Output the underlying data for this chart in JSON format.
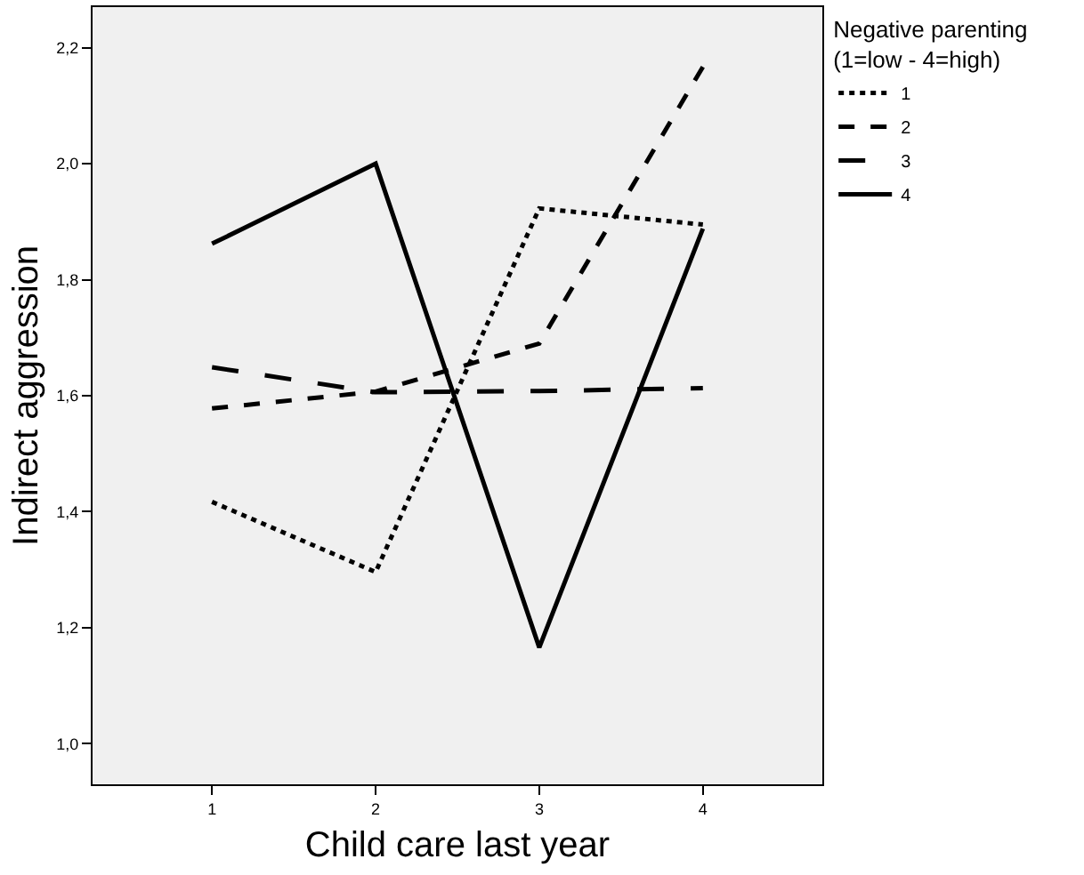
{
  "chart_data": {
    "type": "line",
    "xlabel": "Child care last year",
    "ylabel": "Indirect aggression",
    "legend_title": "Negative parenting\n(1=low - 4=high)",
    "x": [
      1,
      2,
      3,
      4
    ],
    "series": [
      {
        "name": "1",
        "color": "#000000",
        "line_style": "dotted",
        "values": [
          1.417,
          1.296,
          1.923,
          1.895
        ]
      },
      {
        "name": "2",
        "color": "#000000",
        "line_style": "dashed",
        "values": [
          1.578,
          1.607,
          1.69,
          2.167
        ]
      },
      {
        "name": "3",
        "color": "#000000",
        "line_style": "longdash",
        "values": [
          1.649,
          1.606,
          1.608,
          1.613
        ]
      },
      {
        "name": "4",
        "color": "#000000",
        "line_style": "solid",
        "values": [
          1.862,
          2.0,
          1.166,
          1.888
        ]
      }
    ],
    "xlim": [
      0.27,
      4.73
    ],
    "xticks": [
      1,
      2,
      3,
      4
    ],
    "ylim": [
      0.93,
      2.27
    ],
    "yticks": [
      {
        "value": 1.0,
        "label": "1,0"
      },
      {
        "value": 1.2,
        "label": "1,2"
      },
      {
        "value": 1.4,
        "label": "1,4"
      },
      {
        "value": 1.6,
        "label": "1,6"
      },
      {
        "value": 1.8,
        "label": "1,8"
      },
      {
        "value": 2.0,
        "label": "2,0"
      },
      {
        "value": 2.2,
        "label": "2,2"
      }
    ],
    "grid": false,
    "legend": "top right",
    "marker": "none"
  }
}
